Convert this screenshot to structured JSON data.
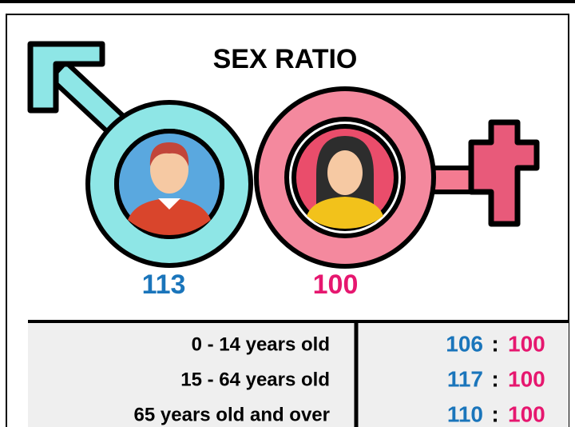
{
  "title": "SEX RATIO",
  "overall": {
    "male": 113,
    "female": 100
  },
  "separator": ":",
  "table": {
    "rows": [
      {
        "label": "0 - 14 years old",
        "male": 106,
        "female": 100
      },
      {
        "label": "15 - 64 years old",
        "male": 117,
        "female": 100
      },
      {
        "label": "65 years old and over",
        "male": 110,
        "female": 100
      }
    ]
  }
}
